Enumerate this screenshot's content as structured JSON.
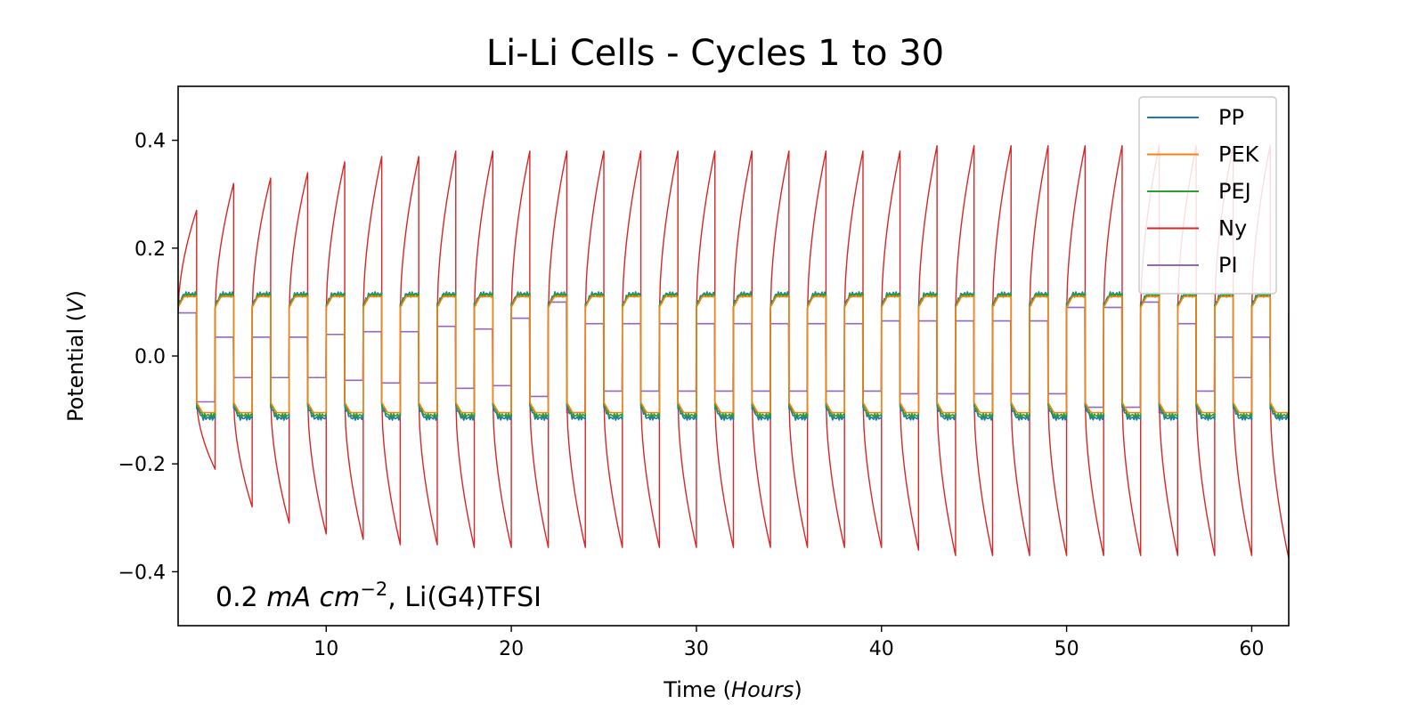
{
  "chart_data": {
    "type": "line",
    "title": "Li-Li Cells - Cycles 1 to 30",
    "xlabel": {
      "prefix": "Time (",
      "italic": "Hours",
      "suffix": ")"
    },
    "ylabel": {
      "prefix": "Potential (",
      "italic": "V",
      "suffix": ")"
    },
    "xlim": [
      2,
      62
    ],
    "ylim": [
      -0.5,
      0.5
    ],
    "xticks": [
      10,
      20,
      30,
      40,
      50,
      60
    ],
    "yticks": [
      -0.4,
      -0.2,
      0.0,
      0.2,
      0.4
    ],
    "ytick_labels": [
      "−0.4",
      "−0.2",
      "0.0",
      "0.2",
      "0.4"
    ],
    "grid": false,
    "legend_position": "top-right",
    "annotation": {
      "value": "0.2 ",
      "italic": "mA cm",
      "exponent": "−2",
      "suffix": ", Li(G4)TFSI"
    },
    "cycle_period_hours": 2,
    "series": [
      {
        "name": "PP",
        "color": "#1f77b4",
        "end_hours": 62,
        "points": [
          [
            2.0,
            0.16
          ],
          [
            2.4,
            0.155
          ],
          [
            3.0,
            0.15
          ],
          [
            3.1,
            -0.1
          ],
          [
            3.5,
            -0.11
          ],
          [
            4.0,
            -0.12
          ],
          [
            4.1,
            0.1
          ],
          [
            5.0,
            0.14
          ],
          [
            5.1,
            -0.1
          ],
          [
            6.0,
            -0.14
          ],
          [
            6.1,
            0.1
          ],
          [
            7.0,
            0.135
          ],
          [
            40,
            0.12
          ],
          [
            60,
            0.12
          ]
        ],
        "plateau_pos": 0.115,
        "plateau_neg": -0.115
      },
      {
        "name": "PEK",
        "color": "#ff7f0e",
        "end_hours": 62,
        "points": [
          [
            2.0,
            0.135
          ],
          [
            3.0,
            0.125
          ],
          [
            3.1,
            -0.1
          ],
          [
            4.0,
            -0.11
          ],
          [
            4.1,
            0.1
          ],
          [
            5.0,
            0.125
          ],
          [
            40,
            0.11
          ],
          [
            60,
            0.11
          ]
        ],
        "plateau_pos": 0.11,
        "plateau_neg": -0.105
      },
      {
        "name": "PEJ",
        "color": "#2ca02c",
        "end_hours": 62,
        "points": [
          [
            2.0,
            0.14
          ],
          [
            3.0,
            0.13
          ],
          [
            3.1,
            -0.1
          ],
          [
            4.0,
            -0.115
          ],
          [
            40,
            0.115
          ],
          [
            60,
            0.115
          ]
        ],
        "plateau_pos": 0.113,
        "plateau_neg": -0.11
      },
      {
        "name": "Ny",
        "color": "#d62728",
        "end_hours": 62,
        "cycle_peaks": [
          0.27,
          0.32,
          0.33,
          0.34,
          0.36,
          0.37,
          0.37,
          0.38,
          0.38,
          0.38,
          0.38,
          0.38,
          0.38,
          0.38,
          0.38,
          0.38,
          0.38,
          0.38,
          0.38,
          0.38,
          0.39,
          0.39,
          0.39,
          0.39,
          0.39,
          0.39,
          0.39,
          0.39,
          0.39,
          0.39,
          0.39
        ],
        "cycle_troughs": [
          -0.21,
          -0.28,
          -0.31,
          -0.33,
          -0.34,
          -0.35,
          -0.35,
          -0.355,
          -0.355,
          -0.355,
          -0.355,
          -0.355,
          -0.355,
          -0.355,
          -0.355,
          -0.355,
          -0.355,
          -0.355,
          -0.355,
          -0.36,
          -0.37,
          -0.37,
          -0.37,
          -0.37,
          -0.37,
          -0.37,
          -0.37,
          -0.37,
          -0.37,
          -0.375,
          -0.38
        ]
      },
      {
        "name": "PI",
        "color": "#9467bd",
        "end_hours": 61.3,
        "points": [
          [
            2.0,
            0.08
          ],
          [
            2.6,
            0.03
          ],
          [
            3.0,
            0.03
          ],
          [
            3.2,
            -0.03
          ],
          [
            4.0,
            -0.03
          ],
          [
            4.1,
            0.035
          ],
          [
            5,
            0.035
          ],
          [
            7,
            0.035
          ],
          [
            8,
            -0.035
          ],
          [
            10,
            -0.04
          ],
          [
            12,
            0.045
          ],
          [
            14,
            -0.045
          ],
          [
            16,
            0.055
          ],
          [
            18,
            -0.05
          ],
          [
            20,
            0.07
          ],
          [
            22,
            -0.07
          ],
          [
            22.5,
            0.1
          ],
          [
            23,
            -0.2
          ],
          [
            23.5,
            -0.09
          ],
          [
            24,
            0.14
          ],
          [
            24.6,
            0.27
          ],
          [
            25,
            -0.055
          ],
          [
            26,
            0.06
          ],
          [
            40,
            0.065
          ],
          [
            50,
            0.09
          ],
          [
            54,
            -0.1
          ],
          [
            55,
            0.035
          ],
          [
            56,
            -0.2
          ],
          [
            57,
            0.035
          ],
          [
            61.3,
            -0.03
          ]
        ],
        "plateau_pos": 0.06,
        "plateau_neg": -0.055
      }
    ]
  }
}
